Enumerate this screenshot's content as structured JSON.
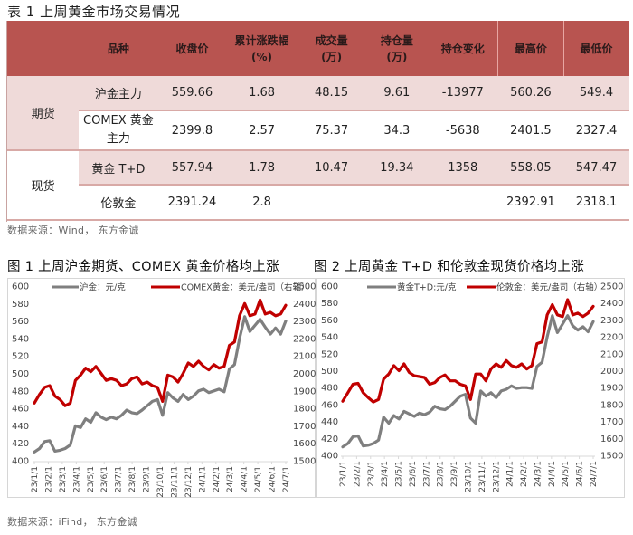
{
  "table": {
    "title": "表 1  上周黄金市场交易情况",
    "headers": [
      "",
      "品种",
      "收盘价",
      "累计涨跌幅",
      "(%)",
      "成交量",
      "(万)",
      "持仓量",
      "(万)",
      "持仓变化",
      "最高价",
      "最低价"
    ],
    "groups": [
      {
        "label": "期货"
      },
      {
        "label": "现货"
      }
    ],
    "rows": [
      {
        "name": "沪金主力",
        "name2": "",
        "close": "559.66",
        "change_pct": "1.68",
        "volume": "48.15",
        "open_interest": "9.61",
        "oi_change": "-13977",
        "high": "560.26",
        "low": "549.4"
      },
      {
        "name": "COMEX 黄金",
        "name2": "主力",
        "close": "2399.8",
        "change_pct": "2.57",
        "volume": "75.37",
        "open_interest": "34.3",
        "oi_change": "-5638",
        "high": "2401.5",
        "low": "2327.4"
      },
      {
        "name": "黄金 T+D",
        "name2": "",
        "close": "557.94",
        "change_pct": "1.78",
        "volume": "10.47",
        "open_interest": "19.34",
        "oi_change": "1358",
        "high": "558.05",
        "low": "547.47"
      },
      {
        "name": "伦敦金",
        "name2": "",
        "close": "2391.24",
        "change_pct": "2.8",
        "volume": "",
        "open_interest": "",
        "oi_change": "",
        "high": "2392.91",
        "low": "2318.1"
      }
    ],
    "source": "数据来源：Wind，  东方金诚"
  },
  "figures": {
    "fig1_title": "图 1  上周沪金期货、COMEX 黄金价格均上涨",
    "fig2_title": "图 2  上周黄金 T+D 和伦敦金现货价格均上涨",
    "source": "数据来源：iFind，  东方金诚"
  },
  "colors": {
    "header_bg": "#b85450",
    "row_shade": "#efdad9",
    "grey_series": "#7f7f7f",
    "red_series": "#c00000"
  },
  "chart_data": [
    {
      "type": "line",
      "title": "图 1  上周沪金期货、COMEX 黄金价格均上涨",
      "xlabel": "",
      "ylabel": "",
      "x_ticks": [
        "23/1/1",
        "23/2/1",
        "23/3/1",
        "23/4/1",
        "23/5/1",
        "23/6/1",
        "23/7/1",
        "23/8/1",
        "23/9/1",
        "23/10/1",
        "23/11/1",
        "23/12/1",
        "24/1/1",
        "24/2/1",
        "24/3/1",
        "24/4/1",
        "24/5/1",
        "24/6/1",
        "24/7/1"
      ],
      "ylim": [
        400,
        600
      ],
      "y_ticks": [
        400,
        420,
        440,
        460,
        480,
        500,
        520,
        540,
        560,
        580,
        600
      ],
      "y2lim": [
        1500,
        2500
      ],
      "y2_ticks": [
        1500,
        1600,
        1700,
        1800,
        1900,
        2000,
        2100,
        2200,
        2300,
        2400,
        2500
      ],
      "legend_position": "top",
      "grid": false,
      "series": [
        {
          "name": "沪金：元/克",
          "axis": "left",
          "color": "#7f7f7f",
          "values": [
            410,
            414,
            422,
            423,
            411,
            412,
            414,
            418,
            440,
            438,
            448,
            444,
            455,
            450,
            447,
            450,
            448,
            452,
            458,
            455,
            454,
            458,
            463,
            468,
            470,
            452,
            478,
            472,
            468,
            476,
            470,
            474,
            480,
            482,
            478,
            480,
            482,
            479,
            505,
            510,
            540,
            565,
            548,
            555,
            562,
            553,
            545,
            552,
            545,
            560
          ]
        },
        {
          "name": "COMEX黄金：美元/盎司（右轴）",
          "axis": "right",
          "color": "#c00000",
          "values": [
            1830,
            1880,
            1920,
            1930,
            1870,
            1850,
            1815,
            1830,
            1960,
            1990,
            2030,
            2010,
            2040,
            2000,
            1960,
            1970,
            1960,
            1930,
            1940,
            1970,
            1980,
            1940,
            1950,
            1930,
            1920,
            1840,
            1990,
            1980,
            1950,
            2000,
            2060,
            2040,
            2070,
            2040,
            2020,
            2050,
            2030,
            2040,
            2160,
            2180,
            2330,
            2400,
            2330,
            2340,
            2420,
            2340,
            2350,
            2330,
            2340,
            2390
          ]
        }
      ]
    },
    {
      "type": "line",
      "title": "图 2  上周黄金 T+D 和伦敦金现货价格均上涨",
      "xlabel": "",
      "ylabel": "",
      "x_ticks": [
        "23/1/1",
        "23/2/1",
        "23/3/1",
        "23/4/1",
        "23/5/1",
        "23/6/1",
        "23/7/1",
        "23/8/1",
        "23/9/1",
        "23/10/1",
        "23/11/1",
        "23/12/1",
        "24/1/1",
        "24/2/1",
        "24/3/1",
        "24/4/1",
        "24/5/1",
        "24/6/1",
        "24/7/1"
      ],
      "ylim": [
        400,
        600
      ],
      "y_ticks": [
        400,
        420,
        440,
        460,
        480,
        500,
        520,
        540,
        560,
        580,
        600
      ],
      "y2lim": [
        1500,
        2500
      ],
      "y2_ticks": [
        1500,
        1600,
        1700,
        1800,
        1900,
        2000,
        2100,
        2200,
        2300,
        2400,
        2500
      ],
      "legend_position": "top",
      "grid": false,
      "series": [
        {
          "name": "黄金T+D:元/克",
          "axis": "left",
          "color": "#7f7f7f",
          "values": [
            410,
            414,
            422,
            423,
            411,
            412,
            414,
            418,
            445,
            438,
            447,
            443,
            452,
            449,
            446,
            450,
            448,
            451,
            458,
            455,
            454,
            458,
            464,
            470,
            472,
            444,
            438,
            476,
            470,
            474,
            468,
            476,
            478,
            482,
            479,
            480,
            480,
            479,
            505,
            510,
            540,
            565,
            545,
            555,
            565,
            553,
            548,
            552,
            546,
            558
          ]
        },
        {
          "name": "伦敦金：美元/盎司（右轴）",
          "axis": "right",
          "color": "#c00000",
          "values": [
            1820,
            1870,
            1920,
            1925,
            1870,
            1840,
            1815,
            1830,
            1950,
            1980,
            2030,
            2000,
            2040,
            1990,
            1970,
            1965,
            1960,
            1920,
            1930,
            1960,
            1975,
            1940,
            1940,
            1920,
            1910,
            1830,
            1980,
            1980,
            1940,
            2010,
            2040,
            2020,
            2060,
            2030,
            2020,
            2040,
            2010,
            2030,
            2160,
            2170,
            2330,
            2390,
            2330,
            2320,
            2420,
            2330,
            2340,
            2320,
            2340,
            2380
          ]
        }
      ]
    }
  ]
}
